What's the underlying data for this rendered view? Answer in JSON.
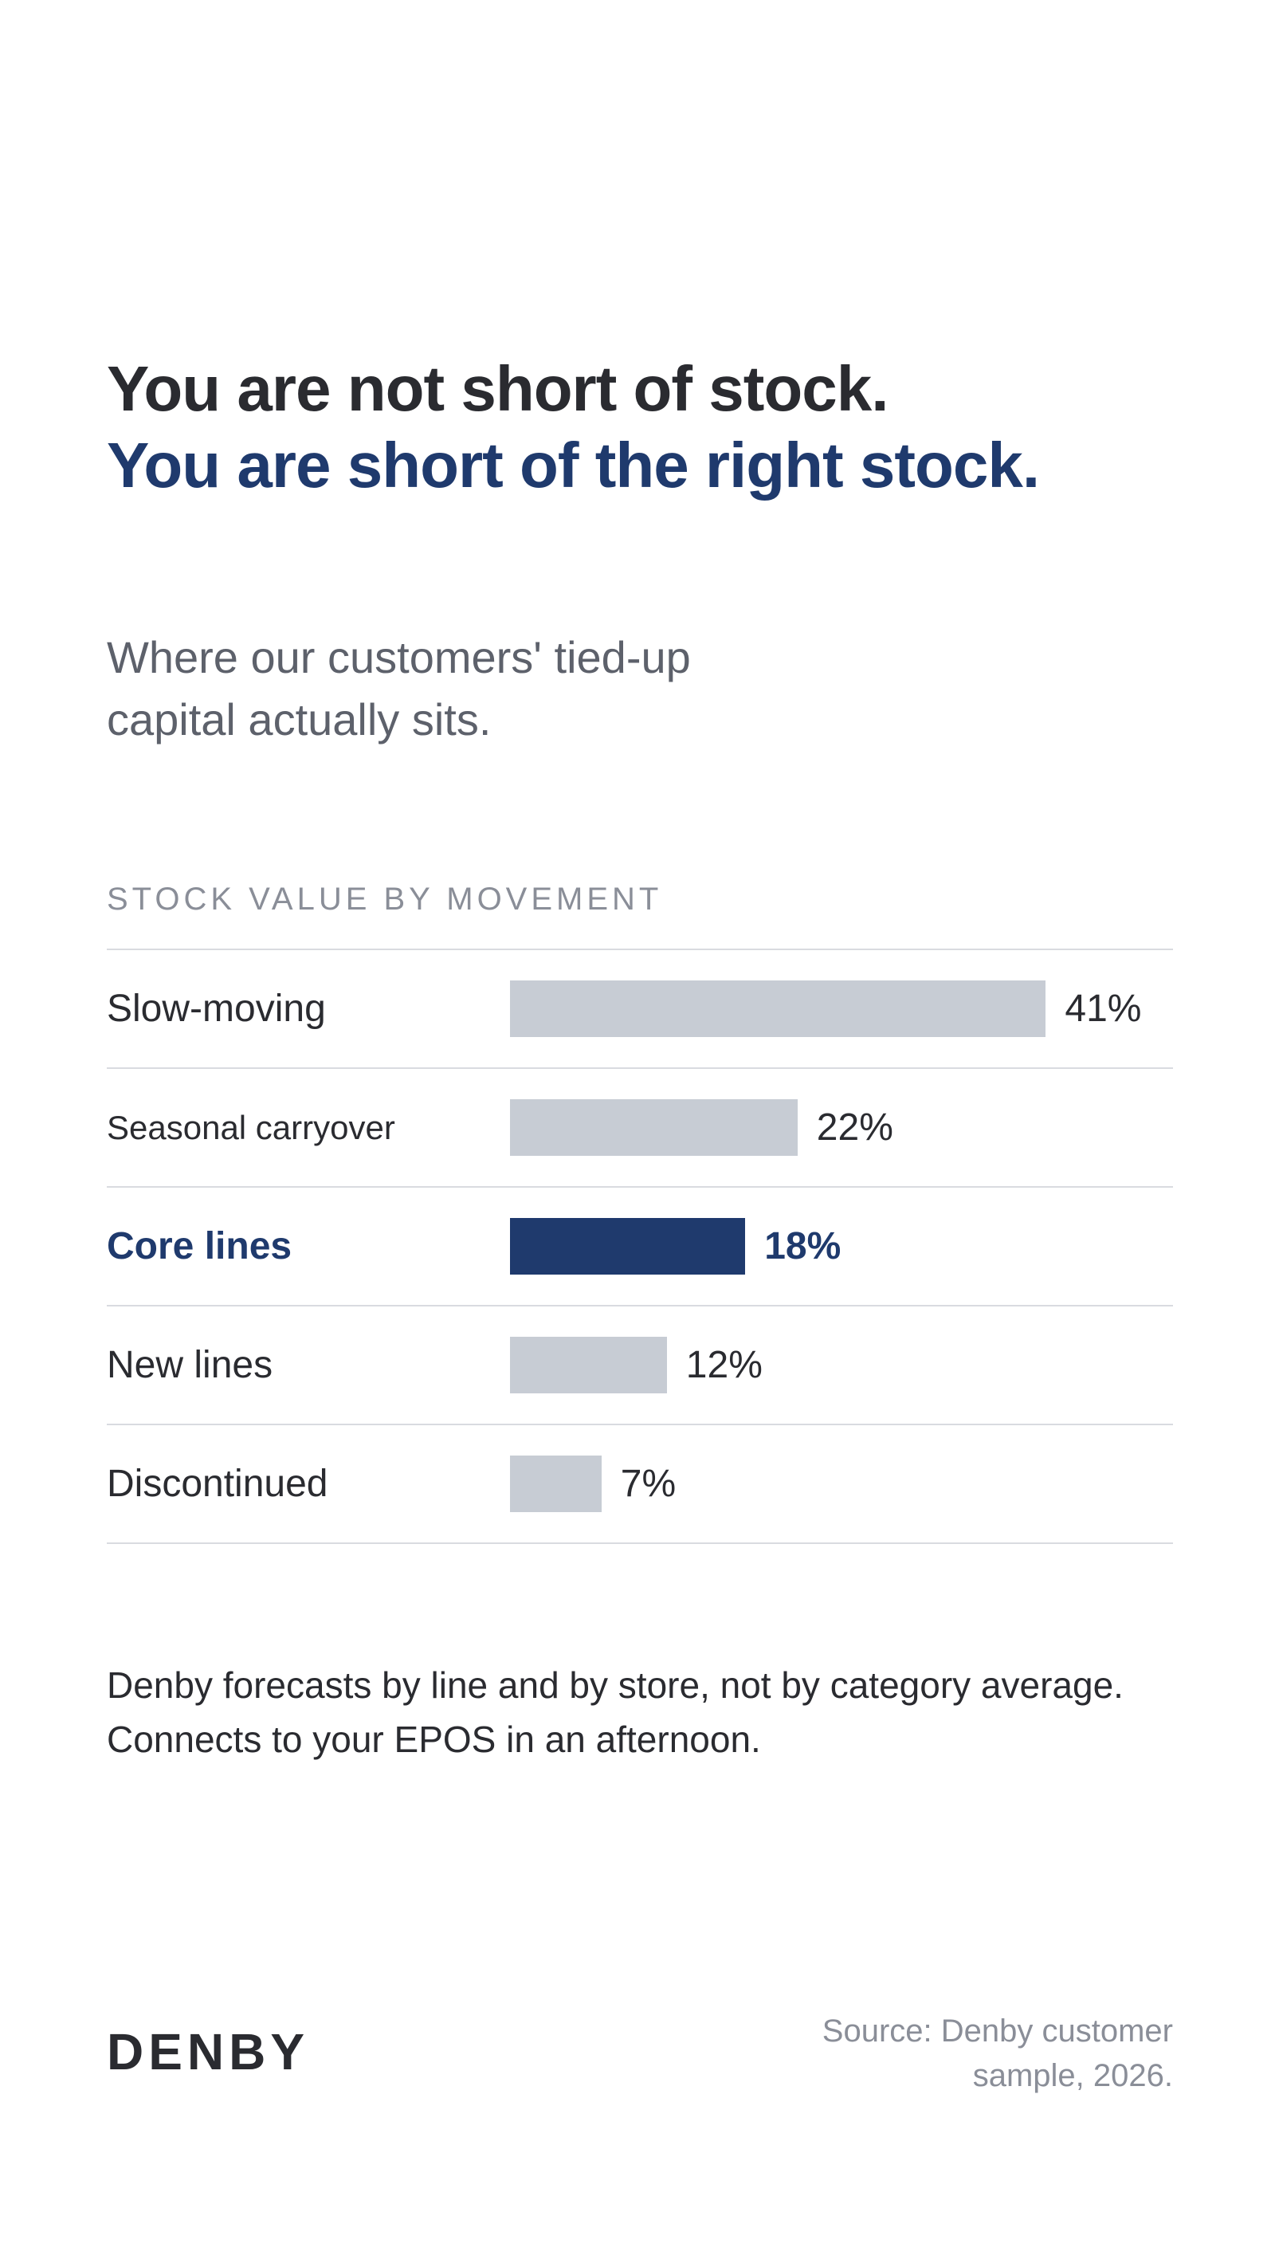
{
  "headline": {
    "line1": "You are not short of stock.",
    "line2": "You are short of the right stock."
  },
  "subhead": "Where our customers' tied-up capital actually sits.",
  "chart_data": {
    "type": "bar",
    "orientation": "horizontal",
    "title": "STOCK VALUE BY MOVEMENT",
    "categories": [
      "Slow-moving",
      "Seasonal carryover",
      "Core lines",
      "New lines",
      "Discontinued"
    ],
    "values": [
      41,
      22,
      18,
      12,
      7
    ],
    "value_labels": [
      "41%",
      "22%",
      "18%",
      "12%",
      "7%"
    ],
    "highlight": "Core lines",
    "xlim": [
      0,
      45
    ],
    "grid": false,
    "colors": {
      "default_bar": "#c7ccd4",
      "highlight_bar": "#1f3a6d"
    }
  },
  "body_copy": "Denby forecasts by line and by store, not by category average. Connects to your EPOS in an afternoon.",
  "footer": {
    "logo": "DENBY",
    "source": "Source: Denby customer sample, 2026."
  },
  "colors": {
    "accent": "#1f3a6d",
    "text": "#2a2b30",
    "muted": "#5d616b",
    "label": "#8a8e98"
  }
}
